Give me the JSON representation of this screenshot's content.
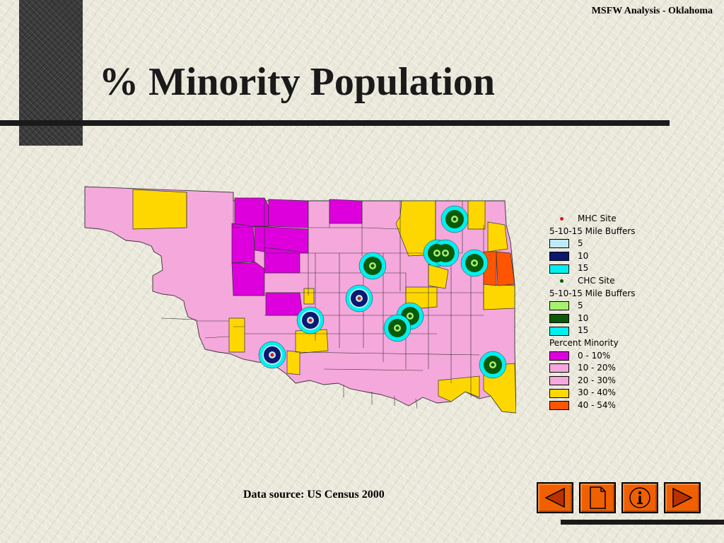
{
  "header": {
    "right_label": "MSFW Analysis - Oklahoma"
  },
  "title": "% Minority Population",
  "legend": {
    "mhc_label": "MHC Site",
    "mhc_buffers_label": "5-10-15 Mile Buffers",
    "mhc_buffers": [
      {
        "label": "5",
        "color": "#bfeaf5"
      },
      {
        "label": "10",
        "color": "#0a1a6e"
      },
      {
        "label": "15",
        "color": "#00f0f0"
      }
    ],
    "chc_label": "CHC Site",
    "chc_buffers_label": "5-10-15 Mile Buffers",
    "chc_buffers": [
      {
        "label": "5",
        "color": "#a8f070"
      },
      {
        "label": "10",
        "color": "#0a5a0a"
      },
      {
        "label": "15",
        "color": "#00f0f0"
      }
    ],
    "minority_label": "Percent Minority",
    "minority_classes": [
      {
        "label": "0 - 10%",
        "color": "#dd00dd"
      },
      {
        "label": "10 - 20%",
        "color": "#f5a8dc"
      },
      {
        "label": "20 - 30%",
        "color": "#f5a8dc"
      },
      {
        "label": "30 - 40%",
        "color": "#ffd700"
      },
      {
        "label": "40 - 54%",
        "color": "#ff5500"
      }
    ]
  },
  "colors": {
    "class_0_10": "#dd00dd",
    "class_10_30": "#f5a8dc",
    "class_30_40": "#ffd700",
    "class_40_54": "#ff5500",
    "mhc_dot": "#d81818",
    "chc_dot": "#0a5a0a",
    "buffer_outer": "#00f0f0",
    "mhc_buffer_mid": "#0a1a6e",
    "chc_buffer_mid": "#0a5a0a",
    "nav_button": "#f06000"
  },
  "source": "Data source: US Census 2000",
  "nav": {
    "buttons": [
      {
        "name": "previous-button",
        "icon": "arrow-left-icon"
      },
      {
        "name": "document-button",
        "icon": "document-icon"
      },
      {
        "name": "info-button",
        "icon": "info-icon"
      },
      {
        "name": "next-button",
        "icon": "arrow-right-icon"
      }
    ]
  }
}
